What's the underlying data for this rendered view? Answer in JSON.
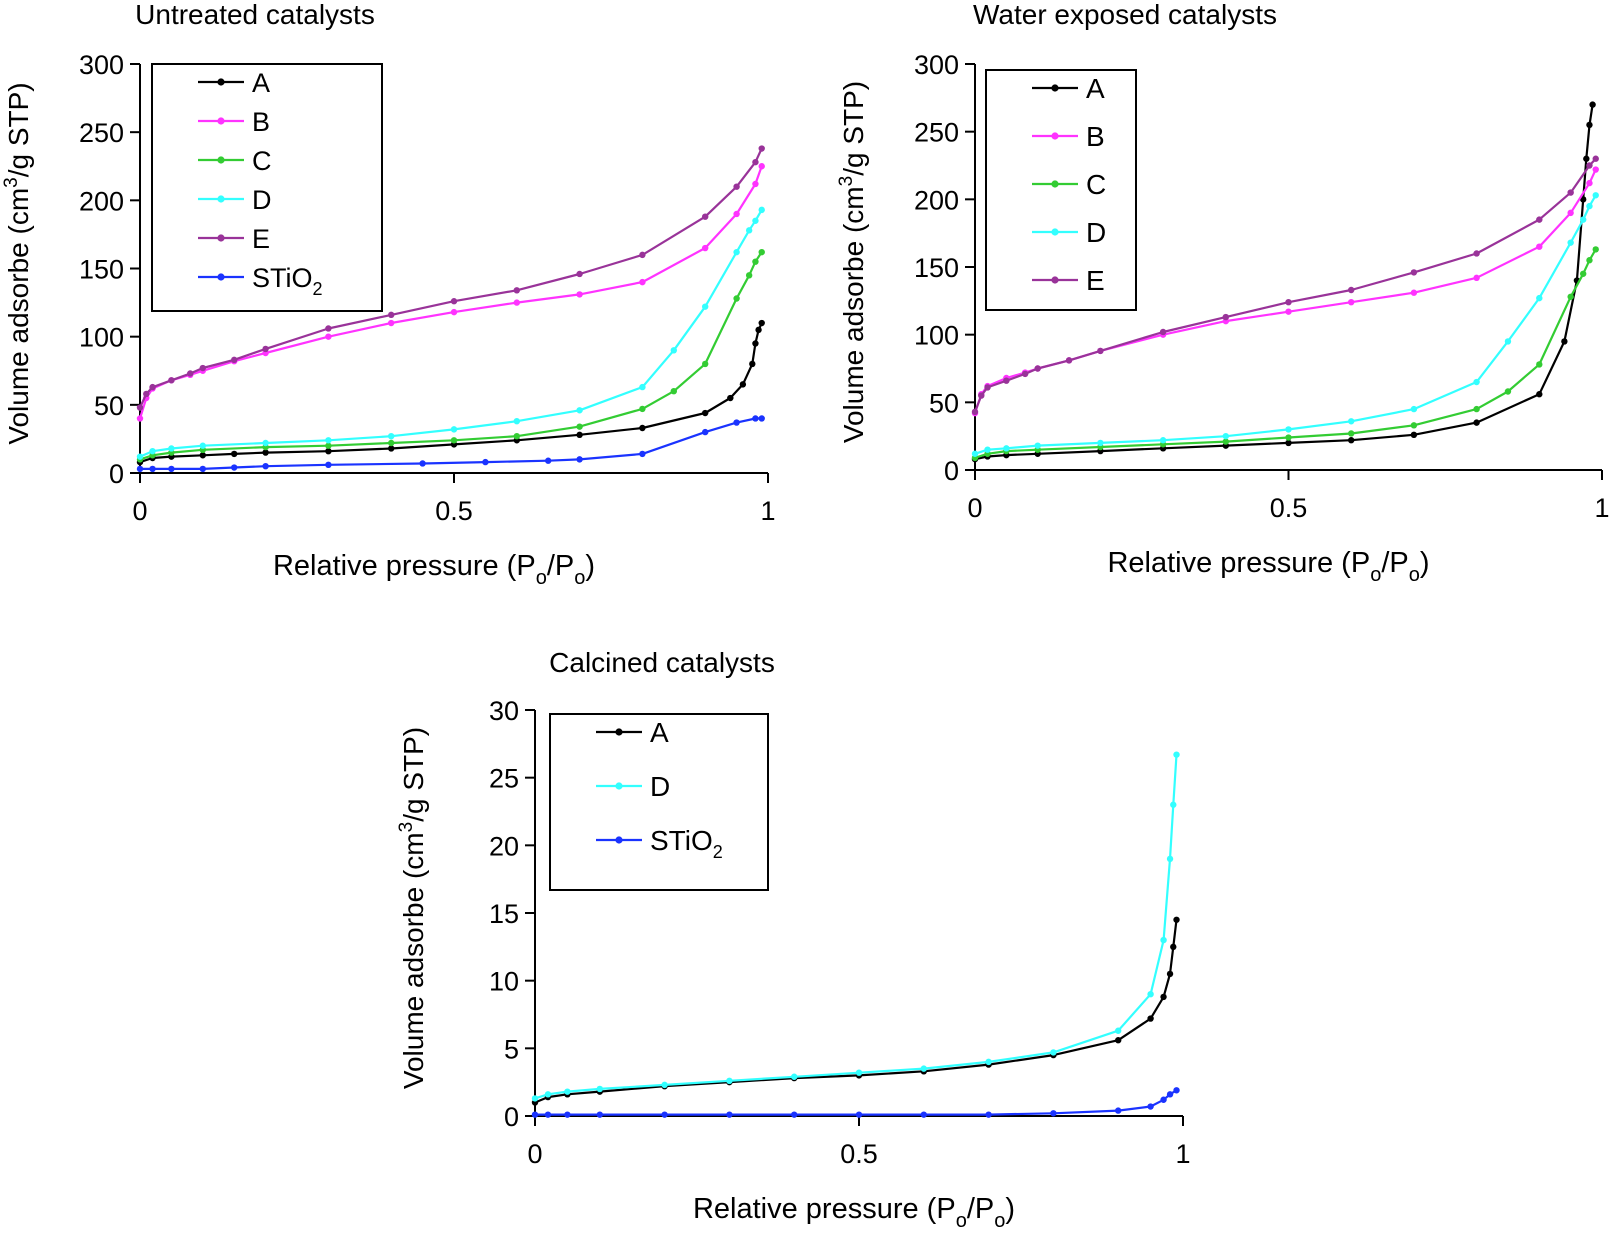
{
  "chart_data": [
    {
      "type": "line",
      "title": "Untreated catalysts",
      "xlabel": "Relative pressure (P",
      "xlabel_sub": "o",
      "xlabel_mid": "/P",
      "xlabel_sub2": "o",
      "xlabel_end": ")",
      "ylabel": "Volume adsorbe (cm",
      "ylabel_sup": "3",
      "ylabel_end": "/g STP)",
      "xlim": [
        0,
        1
      ],
      "ylim": [
        0,
        300
      ],
      "xticks": [
        0,
        0.5,
        1
      ],
      "xtick_labels": [
        "0",
        "0.5",
        "1"
      ],
      "yticks": [
        0,
        50,
        100,
        150,
        200,
        250,
        300
      ],
      "ytick_labels": [
        "0",
        "50",
        "100",
        "150",
        "200",
        "250",
        "300"
      ],
      "legend_position": "top-left",
      "series": [
        {
          "name": "A",
          "name_sub": "",
          "color": "#000000",
          "x": [
            0.0,
            0.02,
            0.05,
            0.1,
            0.15,
            0.2,
            0.3,
            0.4,
            0.5,
            0.6,
            0.7,
            0.8,
            0.9,
            0.94,
            0.96,
            0.975,
            0.98,
            0.985,
            0.99
          ],
          "y": [
            8,
            11,
            12,
            13,
            14,
            15,
            16,
            18,
            21,
            24,
            28,
            33,
            44,
            55,
            65,
            80,
            95,
            105,
            110
          ]
        },
        {
          "name": "B",
          "name_sub": "",
          "color": "#ff33ff",
          "x": [
            0.0,
            0.01,
            0.02,
            0.05,
            0.08,
            0.1,
            0.15,
            0.2,
            0.3,
            0.4,
            0.5,
            0.6,
            0.7,
            0.8,
            0.9,
            0.95,
            0.98,
            0.99
          ],
          "y": [
            40,
            55,
            62,
            68,
            72,
            75,
            82,
            88,
            100,
            110,
            118,
            125,
            131,
            140,
            165,
            190,
            212,
            225
          ]
        },
        {
          "name": "C",
          "name_sub": "",
          "color": "#33cc33",
          "x": [
            0.0,
            0.02,
            0.05,
            0.1,
            0.2,
            0.3,
            0.4,
            0.5,
            0.6,
            0.7,
            0.8,
            0.85,
            0.9,
            0.95,
            0.97,
            0.98,
            0.99
          ],
          "y": [
            10,
            13,
            15,
            17,
            19,
            20,
            22,
            24,
            27,
            34,
            47,
            60,
            80,
            128,
            145,
            155,
            162
          ]
        },
        {
          "name": "D",
          "name_sub": "",
          "color": "#33ffff",
          "x": [
            0.0,
            0.02,
            0.05,
            0.1,
            0.2,
            0.3,
            0.4,
            0.5,
            0.6,
            0.7,
            0.8,
            0.85,
            0.9,
            0.95,
            0.97,
            0.98,
            0.99
          ],
          "y": [
            12,
            16,
            18,
            20,
            22,
            24,
            27,
            32,
            38,
            46,
            63,
            90,
            122,
            162,
            178,
            185,
            193
          ]
        },
        {
          "name": "E",
          "name_sub": "",
          "color": "#993399",
          "x": [
            0.0,
            0.01,
            0.02,
            0.05,
            0.08,
            0.1,
            0.15,
            0.2,
            0.3,
            0.4,
            0.5,
            0.6,
            0.7,
            0.8,
            0.9,
            0.95,
            0.98,
            0.99
          ],
          "y": [
            48,
            58,
            63,
            68,
            73,
            77,
            83,
            91,
            106,
            116,
            126,
            134,
            146,
            160,
            188,
            210,
            228,
            238
          ]
        },
        {
          "name": "STiO",
          "name_sub": "2",
          "color": "#1a33ff",
          "x": [
            0.0,
            0.02,
            0.05,
            0.1,
            0.15,
            0.2,
            0.3,
            0.45,
            0.55,
            0.65,
            0.7,
            0.8,
            0.9,
            0.95,
            0.98,
            0.99
          ],
          "y": [
            3,
            3,
            3,
            3,
            4,
            5,
            6,
            7,
            8,
            9,
            10,
            14,
            30,
            37,
            40,
            40
          ]
        }
      ]
    },
    {
      "type": "line",
      "title": "Water exposed catalysts",
      "xlabel": "Relative pressure (P",
      "xlabel_sub": "o",
      "xlabel_mid": "/P",
      "xlabel_sub2": "o",
      "xlabel_end": ")",
      "ylabel": "Volume adsorbe (cm",
      "ylabel_sup": "3",
      "ylabel_end": "/g STP)",
      "xlim": [
        0,
        1
      ],
      "ylim": [
        0,
        300
      ],
      "xticks": [
        0,
        0.5,
        1
      ],
      "xtick_labels": [
        "0",
        "0.5",
        "1"
      ],
      "yticks": [
        0,
        50,
        100,
        150,
        200,
        250,
        300
      ],
      "ytick_labels": [
        "0",
        "50",
        "100",
        "150",
        "200",
        "250",
        "300"
      ],
      "legend_position": "top-left",
      "series": [
        {
          "name": "A",
          "name_sub": "",
          "color": "#000000",
          "x": [
            0.0,
            0.02,
            0.05,
            0.1,
            0.2,
            0.3,
            0.4,
            0.5,
            0.6,
            0.7,
            0.8,
            0.9,
            0.94,
            0.96,
            0.97,
            0.975,
            0.98,
            0.985
          ],
          "y": [
            8,
            10,
            11,
            12,
            14,
            16,
            18,
            20,
            22,
            26,
            35,
            56,
            95,
            140,
            200,
            230,
            255,
            270
          ]
        },
        {
          "name": "B",
          "name_sub": "",
          "color": "#ff33ff",
          "x": [
            0.0,
            0.01,
            0.02,
            0.05,
            0.08,
            0.1,
            0.15,
            0.2,
            0.3,
            0.4,
            0.5,
            0.6,
            0.7,
            0.8,
            0.9,
            0.95,
            0.98,
            0.99
          ],
          "y": [
            42,
            56,
            62,
            68,
            72,
            75,
            81,
            88,
            100,
            110,
            117,
            124,
            131,
            142,
            165,
            190,
            212,
            222
          ]
        },
        {
          "name": "C",
          "name_sub": "",
          "color": "#33cc33",
          "x": [
            0.0,
            0.02,
            0.05,
            0.1,
            0.2,
            0.3,
            0.4,
            0.5,
            0.6,
            0.7,
            0.8,
            0.85,
            0.9,
            0.95,
            0.97,
            0.98,
            0.99
          ],
          "y": [
            9,
            12,
            14,
            15,
            17,
            19,
            21,
            24,
            27,
            33,
            45,
            58,
            78,
            128,
            145,
            155,
            163
          ]
        },
        {
          "name": "D",
          "name_sub": "",
          "color": "#33ffff",
          "x": [
            0.0,
            0.02,
            0.05,
            0.1,
            0.2,
            0.3,
            0.4,
            0.5,
            0.6,
            0.7,
            0.8,
            0.85,
            0.9,
            0.95,
            0.97,
            0.98,
            0.99
          ],
          "y": [
            12,
            15,
            16,
            18,
            20,
            22,
            25,
            30,
            36,
            45,
            65,
            95,
            127,
            168,
            185,
            195,
            203
          ]
        },
        {
          "name": "E",
          "name_sub": "",
          "color": "#993399",
          "x": [
            0.0,
            0.01,
            0.02,
            0.05,
            0.08,
            0.1,
            0.15,
            0.2,
            0.3,
            0.4,
            0.5,
            0.6,
            0.7,
            0.8,
            0.9,
            0.95,
            0.98,
            0.99
          ],
          "y": [
            43,
            55,
            61,
            66,
            71,
            75,
            81,
            88,
            102,
            113,
            124,
            133,
            146,
            160,
            185,
            205,
            225,
            230
          ]
        }
      ]
    },
    {
      "type": "line",
      "title": "Calcined catalysts",
      "xlabel": "Relative pressure (P",
      "xlabel_sub": "o",
      "xlabel_mid": "/P",
      "xlabel_sub2": "o",
      "xlabel_end": ")",
      "ylabel": "Volume adsorbe (cm",
      "ylabel_sup": "3",
      "ylabel_end": "/g STP)",
      "xlim": [
        0,
        1
      ],
      "ylim": [
        0,
        30
      ],
      "xticks": [
        0,
        0.5,
        1
      ],
      "xtick_labels": [
        "0",
        "0.5",
        "1"
      ],
      "yticks": [
        0,
        5,
        10,
        15,
        20,
        25,
        30
      ],
      "ytick_labels": [
        "0",
        "5",
        "10",
        "15",
        "20",
        "25",
        "30"
      ],
      "legend_position": "top-left",
      "series": [
        {
          "name": "A",
          "name_sub": "",
          "color": "#000000",
          "x": [
            0.0,
            0.02,
            0.05,
            0.1,
            0.2,
            0.3,
            0.4,
            0.5,
            0.6,
            0.7,
            0.8,
            0.9,
            0.95,
            0.97,
            0.98,
            0.985,
            0.99
          ],
          "y": [
            1.0,
            1.4,
            1.6,
            1.8,
            2.2,
            2.5,
            2.8,
            3.0,
            3.3,
            3.8,
            4.5,
            5.6,
            7.2,
            8.8,
            10.5,
            12.5,
            14.5
          ]
        },
        {
          "name": "D",
          "name_sub": "",
          "color": "#33ffff",
          "x": [
            0.0,
            0.02,
            0.05,
            0.1,
            0.2,
            0.3,
            0.4,
            0.5,
            0.6,
            0.7,
            0.8,
            0.9,
            0.95,
            0.97,
            0.98,
            0.985,
            0.99
          ],
          "y": [
            1.3,
            1.6,
            1.8,
            2.0,
            2.3,
            2.6,
            2.9,
            3.2,
            3.5,
            4.0,
            4.7,
            6.3,
            9.0,
            13.0,
            19.0,
            23.0,
            26.7
          ]
        },
        {
          "name": "STiO",
          "name_sub": "2",
          "color": "#1a33ff",
          "x": [
            0.0,
            0.02,
            0.05,
            0.1,
            0.2,
            0.3,
            0.4,
            0.5,
            0.6,
            0.7,
            0.8,
            0.9,
            0.95,
            0.97,
            0.98,
            0.99
          ],
          "y": [
            0.1,
            0.1,
            0.1,
            0.1,
            0.1,
            0.1,
            0.1,
            0.1,
            0.1,
            0.1,
            0.2,
            0.4,
            0.7,
            1.2,
            1.6,
            1.9
          ]
        }
      ]
    }
  ]
}
